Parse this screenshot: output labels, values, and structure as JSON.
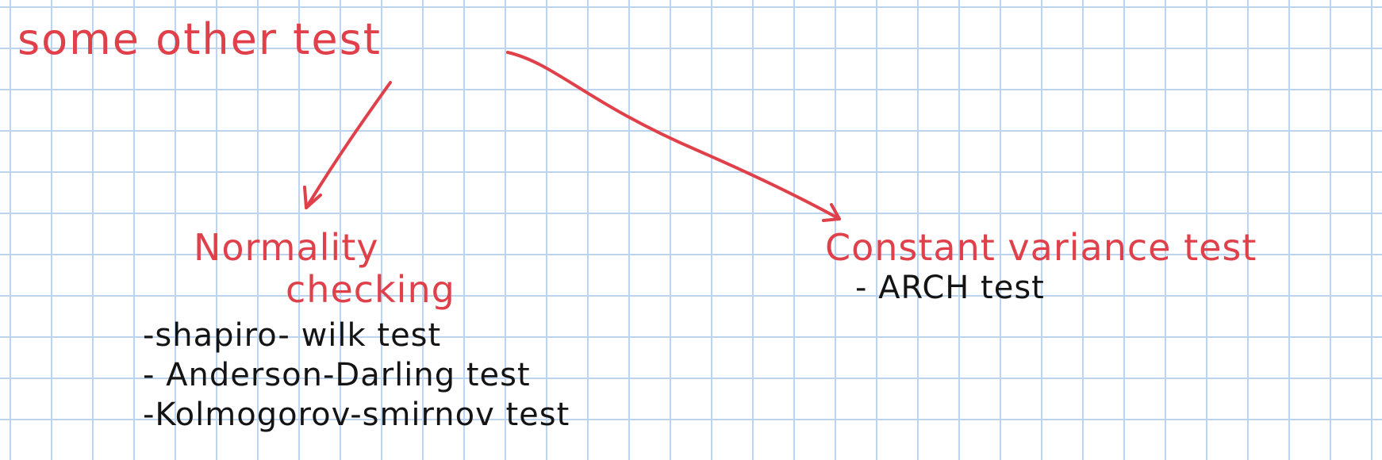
{
  "title": "some other test",
  "branches": [
    {
      "heading_lines": [
        "Normality",
        "checking"
      ],
      "items": [
        "-shapiro- wilk test",
        "- Anderson-Darling test",
        "-Kolmogorov-smirnov test"
      ]
    },
    {
      "heading": "Constant variance test",
      "items": [
        "- ARCH test"
      ]
    }
  ],
  "colors": {
    "ink_red": "#e0404a",
    "ink_black": "#141414",
    "grid": "#bcd4ee",
    "paper": "#ffffff"
  }
}
